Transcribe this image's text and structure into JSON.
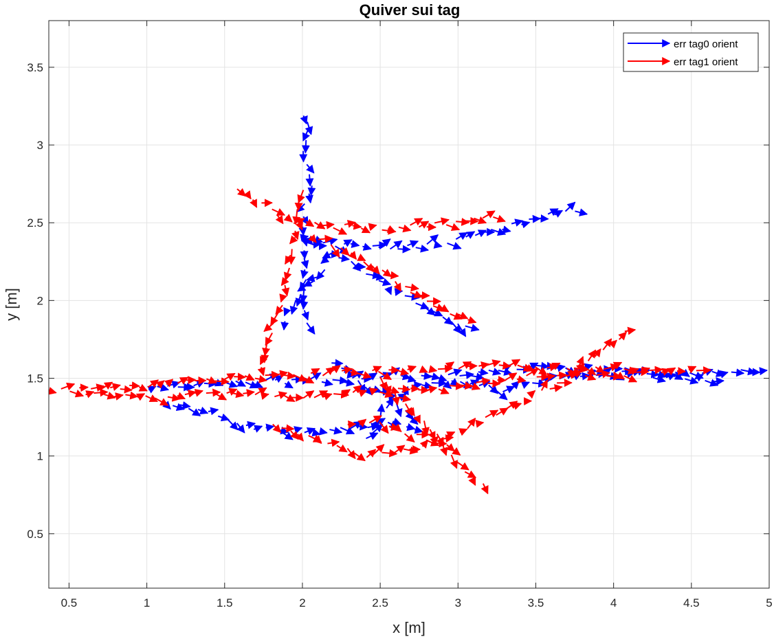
{
  "chart_data": {
    "type": "quiver",
    "title": "Quiver sui tag",
    "xlabel": "x [m]",
    "ylabel": "y [m]",
    "xlim": [
      0.37,
      5.0
    ],
    "ylim": [
      0.15,
      3.8
    ],
    "xticks": [
      0.5,
      1,
      1.5,
      2,
      2.5,
      3,
      3.5,
      4,
      4.5,
      5
    ],
    "yticks": [
      0.5,
      1,
      1.5,
      2,
      2.5,
      3,
      3.5
    ],
    "xtick_labels": [
      "0.5",
      "1",
      "1.5",
      "2",
      "2.5",
      "3",
      "3.5",
      "4",
      "4.5",
      "5"
    ],
    "ytick_labels": [
      "0.5",
      "1",
      "1.5",
      "2",
      "2.5",
      "3",
      "3.5"
    ],
    "grid": true,
    "legend_position": "top-right",
    "series": [
      {
        "name": "err tag0 orient",
        "color": "#0000ff",
        "paths": [
          [
            [
              2.02,
              3.2
            ],
            [
              2.03,
              3.1
            ],
            [
              2.0,
              2.95
            ],
            [
              2.05,
              2.75
            ],
            [
              2.0,
              2.55
            ],
            [
              2.0,
              2.4
            ],
            [
              2.02,
              2.2
            ],
            [
              2.0,
              2.0
            ],
            [
              2.03,
              1.8
            ]
          ],
          [
            [
              2.0,
              2.4
            ],
            [
              2.2,
              2.36
            ],
            [
              2.5,
              2.34
            ],
            [
              2.8,
              2.35
            ],
            [
              3.1,
              2.42
            ],
            [
              3.4,
              2.5
            ],
            [
              3.8,
              2.6
            ]
          ],
          [
            [
              2.0,
              2.4
            ],
            [
              2.3,
              2.25
            ],
            [
              2.6,
              2.05
            ],
            [
              2.9,
              1.9
            ],
            [
              3.1,
              1.8
            ]
          ],
          [
            [
              2.2,
              2.32
            ],
            [
              2.1,
              2.15
            ],
            [
              1.98,
              2.05
            ],
            [
              1.85,
              1.82
            ]
          ],
          [
            [
              1.0,
              1.43
            ],
            [
              1.5,
              1.47
            ],
            [
              2.0,
              1.48
            ],
            [
              2.5,
              1.5
            ],
            [
              3.0,
              1.52
            ],
            [
              3.5,
              1.58
            ],
            [
              4.0,
              1.55
            ],
            [
              4.5,
              1.53
            ],
            [
              5.0,
              1.55
            ]
          ],
          [
            [
              1.1,
              1.35
            ],
            [
              1.4,
              1.28
            ],
            [
              1.7,
              1.18
            ],
            [
              2.0,
              1.15
            ],
            [
              2.3,
              1.18
            ],
            [
              2.6,
              1.22
            ],
            [
              2.8,
              1.15
            ]
          ],
          [
            [
              2.4,
              1.1
            ],
            [
              2.55,
              1.3
            ],
            [
              2.7,
              1.45
            ],
            [
              2.9,
              1.5
            ],
            [
              3.3,
              1.42
            ],
            [
              3.6,
              1.5
            ],
            [
              4.2,
              1.52
            ],
            [
              4.7,
              1.48
            ]
          ],
          [
            [
              2.2,
              1.6
            ],
            [
              2.4,
              1.45
            ],
            [
              2.6,
              1.35
            ],
            [
              2.75,
              1.2
            ]
          ]
        ]
      },
      {
        "name": "err tag1 orient",
        "color": "#ff0000",
        "paths": [
          [
            [
              1.58,
              2.72
            ],
            [
              1.75,
              2.62
            ],
            [
              1.95,
              2.5
            ],
            [
              2.2,
              2.48
            ],
            [
              2.5,
              2.46
            ],
            [
              2.8,
              2.48
            ],
            [
              3.1,
              2.52
            ],
            [
              3.3,
              2.54
            ]
          ],
          [
            [
              2.0,
              2.7
            ],
            [
              1.95,
              2.4
            ],
            [
              1.9,
              2.1
            ],
            [
              1.8,
              1.8
            ],
            [
              1.72,
              1.5
            ]
          ],
          [
            [
              2.05,
              2.42
            ],
            [
              2.3,
              2.3
            ],
            [
              2.5,
              2.2
            ],
            [
              2.65,
              2.08
            ],
            [
              2.9,
              1.95
            ],
            [
              3.1,
              1.85
            ]
          ],
          [
            [
              0.37,
              1.42
            ],
            [
              0.7,
              1.44
            ],
            [
              1.0,
              1.45
            ],
            [
              1.5,
              1.5
            ],
            [
              2.0,
              1.52
            ],
            [
              2.5,
              1.55
            ],
            [
              3.0,
              1.57
            ],
            [
              3.5,
              1.58
            ],
            [
              4.0,
              1.56
            ],
            [
              4.3,
              1.54
            ],
            [
              4.6,
              1.56
            ]
          ],
          [
            [
              0.6,
              1.4
            ],
            [
              1.0,
              1.38
            ],
            [
              1.5,
              1.4
            ],
            [
              2.0,
              1.38
            ],
            [
              2.5,
              1.42
            ],
            [
              3.0,
              1.45
            ],
            [
              3.5,
              1.52
            ],
            [
              4.2,
              1.53
            ]
          ],
          [
            [
              1.8,
              1.2
            ],
            [
              2.1,
              1.1
            ],
            [
              2.4,
              1.0
            ],
            [
              2.7,
              1.05
            ],
            [
              3.0,
              1.15
            ],
            [
              3.3,
              1.3
            ],
            [
              3.7,
              1.5
            ],
            [
              4.12,
              1.83
            ]
          ],
          [
            [
              2.5,
              1.5
            ],
            [
              2.7,
              1.3
            ],
            [
              2.9,
              1.1
            ],
            [
              3.0,
              0.95
            ],
            [
              3.2,
              0.77
            ]
          ],
          [
            [
              2.3,
              1.2
            ],
            [
              2.5,
              1.22
            ],
            [
              2.6,
              1.18
            ],
            [
              2.8,
              1.1
            ],
            [
              3.0,
              1.05
            ]
          ]
        ]
      }
    ]
  }
}
